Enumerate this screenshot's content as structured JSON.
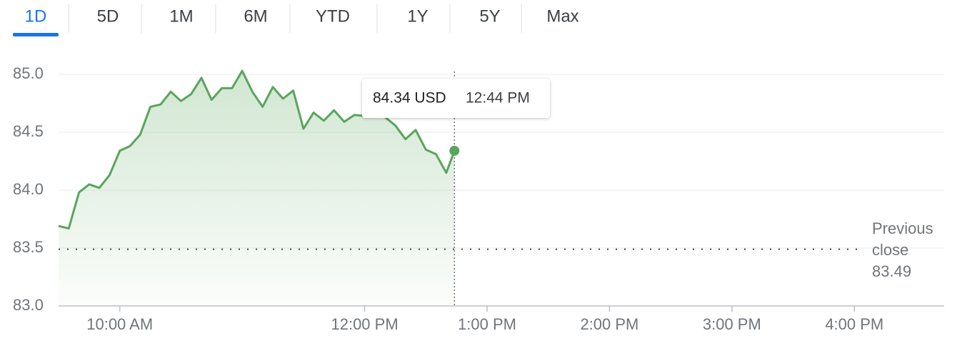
{
  "tabs": [
    "1D",
    "5D",
    "1M",
    "6M",
    "YTD",
    "1Y",
    "5Y",
    "Max"
  ],
  "selected_tab": 0,
  "chart_data": {
    "type": "line",
    "x": [
      570,
      575,
      580,
      585,
      590,
      595,
      600,
      605,
      610,
      615,
      620,
      625,
      630,
      635,
      640,
      645,
      650,
      655,
      660,
      665,
      670,
      675,
      680,
      685,
      690,
      695,
      700,
      705,
      710,
      715,
      720,
      725,
      730,
      735,
      740,
      745,
      750,
      755,
      760,
      764
    ],
    "values": [
      83.69,
      83.67,
      83.98,
      84.05,
      84.02,
      84.13,
      84.34,
      84.38,
      84.48,
      84.72,
      84.74,
      84.85,
      84.77,
      84.83,
      84.97,
      84.78,
      84.88,
      84.88,
      85.03,
      84.85,
      84.72,
      84.89,
      84.79,
      84.86,
      84.53,
      84.67,
      84.6,
      84.69,
      84.59,
      84.65,
      84.64,
      84.66,
      84.63,
      84.56,
      84.44,
      84.52,
      84.35,
      84.31,
      84.15,
      84.34
    ],
    "color": "#5aa55c",
    "xlim": [
      570,
      1004
    ],
    "xticks": [
      {
        "value": 600,
        "label": "10:00 AM"
      },
      {
        "value": 720,
        "label": "12:00 PM"
      },
      {
        "value": 780,
        "label": "1:00 PM"
      },
      {
        "value": 840,
        "label": "2:00 PM"
      },
      {
        "value": 900,
        "label": "3:00 PM"
      },
      {
        "value": 960,
        "label": "4:00 PM"
      }
    ],
    "ylim": [
      83,
      85
    ],
    "yticks": [
      {
        "value": 83,
        "label": "83.0"
      },
      83.5,
      {
        "value": 84,
        "label": "84.0"
      },
      84.5,
      {
        "value": 85,
        "label": "85.0"
      }
    ],
    "grid": true,
    "previous_close": {
      "label": "Previous close",
      "value": 83.49
    },
    "tooltip": {
      "price": "84.34 USD",
      "time": "12:44 PM"
    }
  }
}
